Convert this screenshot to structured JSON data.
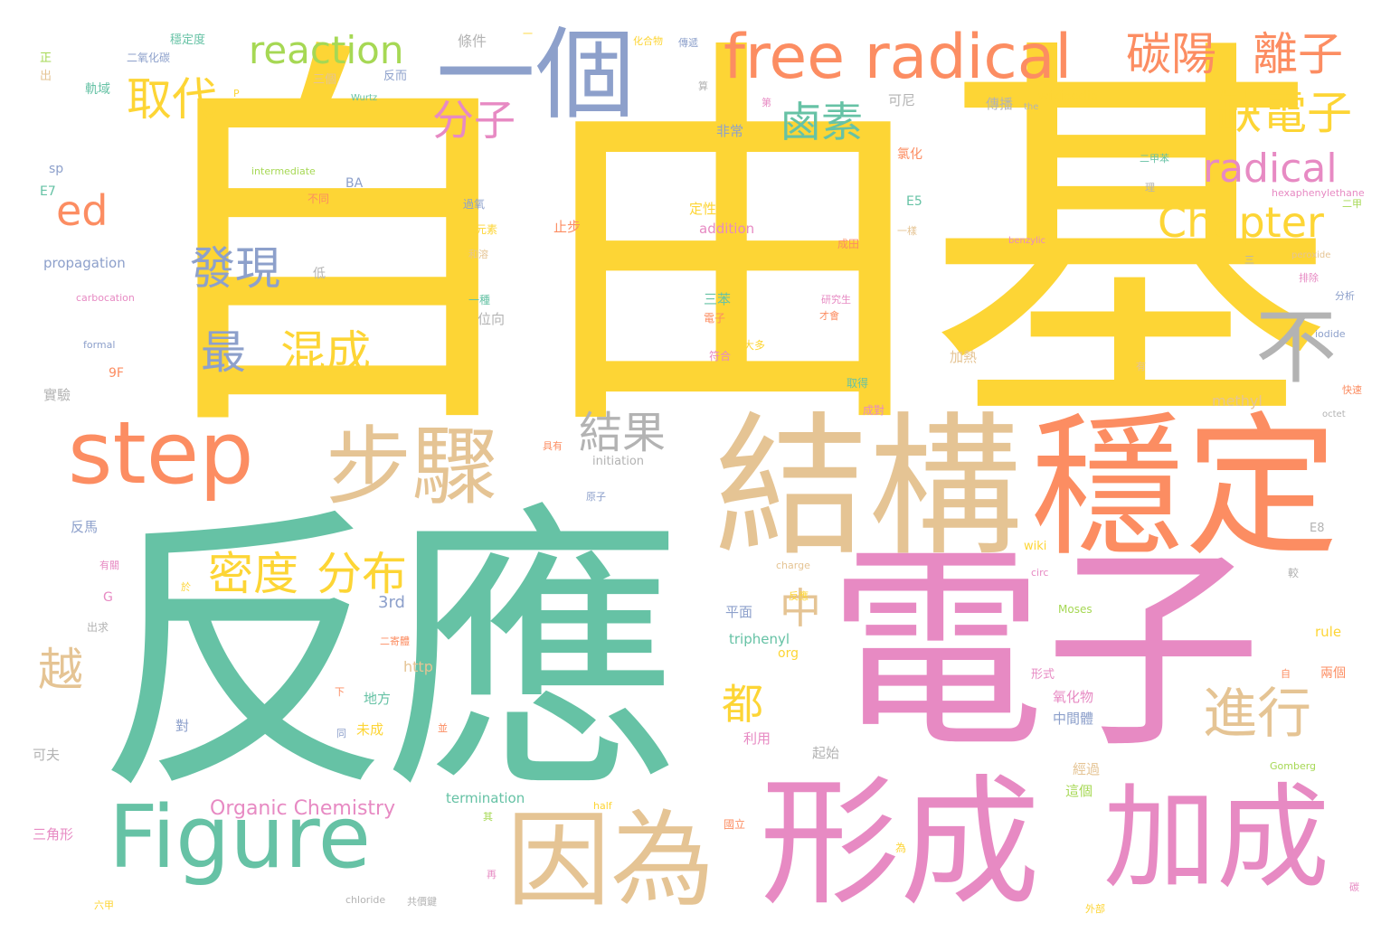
{
  "palette": {
    "yellow": "#fdd535",
    "green": "#66c2a5",
    "pink": "#e78ac3",
    "orange": "#fc8d62",
    "tan": "#e5c494",
    "blue": "#8da0cb",
    "lime": "#a6d854",
    "gray": "#b3b3b3"
  },
  "words": [
    {
      "text": "自由基",
      "color": "yellow"
    },
    {
      "text": "反應",
      "color": "green"
    },
    {
      "text": "電子",
      "color": "pink"
    },
    {
      "text": "結構",
      "color": "tan"
    },
    {
      "text": "穩定",
      "color": "orange"
    },
    {
      "text": "形成",
      "color": "pink"
    },
    {
      "text": "加成",
      "color": "pink"
    },
    {
      "text": "因為",
      "color": "tan"
    },
    {
      "text": "Figure",
      "color": "green"
    },
    {
      "text": "step",
      "color": "orange"
    },
    {
      "text": "步驟",
      "color": "tan"
    },
    {
      "text": "一個",
      "color": "blue"
    },
    {
      "text": "free radical",
      "color": "orange"
    },
    {
      "text": "碳陽",
      "color": "orange"
    },
    {
      "text": "離子",
      "color": "orange"
    },
    {
      "text": "reaction",
      "color": "lime"
    },
    {
      "text": "取代",
      "color": "yellow"
    },
    {
      "text": "分子",
      "color": "pink"
    },
    {
      "text": "鹵素",
      "color": "green"
    },
    {
      "text": "缺電子",
      "color": "yellow"
    },
    {
      "text": "radical",
      "color": "pink"
    },
    {
      "text": "Chapter",
      "color": "yellow"
    },
    {
      "text": "ed",
      "color": "orange"
    },
    {
      "text": "發現",
      "color": "blue"
    },
    {
      "text": "最",
      "color": "blue"
    },
    {
      "text": "混成",
      "color": "yellow"
    },
    {
      "text": "不",
      "color": "gray"
    },
    {
      "text": "結果",
      "color": "gray"
    },
    {
      "text": "密度",
      "color": "yellow"
    },
    {
      "text": "分布",
      "color": "yellow"
    },
    {
      "text": "中",
      "color": "tan"
    },
    {
      "text": "進行",
      "color": "tan"
    },
    {
      "text": "都",
      "color": "yellow"
    },
    {
      "text": "越",
      "color": "tan"
    },
    {
      "text": "Organic Chemistry",
      "color": "pink"
    },
    {
      "text": "3rd",
      "color": "blue"
    },
    {
      "text": "propagation",
      "color": "blue"
    },
    {
      "text": "termination",
      "color": "green"
    },
    {
      "text": "triphenyl",
      "color": "green"
    },
    {
      "text": "addition",
      "color": "pink"
    },
    {
      "text": "initiation",
      "color": "gray"
    },
    {
      "text": "intermediate",
      "color": "lime"
    },
    {
      "text": "carbocation",
      "color": "pink"
    },
    {
      "text": "formal",
      "color": "blue"
    },
    {
      "text": "wikipedia",
      "color": "yellow"
    },
    {
      "text": "hexaphenylethane",
      "color": "pink"
    },
    {
      "text": "benzylic",
      "color": "pink"
    },
    {
      "text": "peroxide",
      "color": "tan"
    },
    {
      "text": "iodide",
      "color": "blue"
    },
    {
      "text": "octet",
      "color": "gray"
    },
    {
      "text": "methyl",
      "color": "tan"
    },
    {
      "text": "charge",
      "color": "tan"
    },
    {
      "text": "circ",
      "color": "pink"
    },
    {
      "text": "Moses",
      "color": "lime"
    },
    {
      "text": "Gomberg",
      "color": "lime"
    },
    {
      "text": "rule",
      "color": "yellow"
    },
    {
      "text": "http",
      "color": "tan"
    },
    {
      "text": "org",
      "color": "yellow"
    },
    {
      "text": "half",
      "color": "yellow"
    },
    {
      "text": "chloride",
      "color": "gray"
    },
    {
      "text": "wiki",
      "color": "yellow"
    },
    {
      "text": "Wurtz",
      "color": "green"
    },
    {
      "text": "BA",
      "color": "blue"
    },
    {
      "text": "sp",
      "color": "blue"
    },
    {
      "text": "E7",
      "color": "green"
    },
    {
      "text": "E5",
      "color": "green"
    },
    {
      "text": "E8",
      "color": "gray"
    },
    {
      "text": "9F",
      "color": "orange"
    },
    {
      "text": "G",
      "color": "pink"
    },
    {
      "text": "P",
      "color": "yellow"
    },
    {
      "text": "the",
      "color": "gray"
    },
    {
      "text": "條件",
      "color": "gray"
    },
    {
      "text": "正",
      "color": "lime"
    },
    {
      "text": "出",
      "color": "tan"
    },
    {
      "text": "二氧化碳",
      "color": "blue"
    },
    {
      "text": "穩定度",
      "color": "green"
    },
    {
      "text": "軌域",
      "color": "green"
    },
    {
      "text": "三個",
      "color": "tan"
    },
    {
      "text": "反而",
      "color": "blue"
    },
    {
      "text": "化合物",
      "color": "yellow"
    },
    {
      "text": "傳遞",
      "color": "blue"
    },
    {
      "text": "可尼",
      "color": "gray"
    },
    {
      "text": "傳播",
      "color": "gray"
    },
    {
      "text": "非常",
      "color": "blue"
    },
    {
      "text": "氯化",
      "color": "orange"
    },
    {
      "text": "定性",
      "color": "yellow"
    },
    {
      "text": "止步",
      "color": "orange"
    },
    {
      "text": "元素",
      "color": "yellow"
    },
    {
      "text": "和溶",
      "color": "tan"
    },
    {
      "text": "低",
      "color": "gray"
    },
    {
      "text": "不同",
      "color": "orange"
    },
    {
      "text": "過氧",
      "color": "blue"
    },
    {
      "text": "位向",
      "color": "gray"
    },
    {
      "text": "一種",
      "color": "green"
    },
    {
      "text": "三苯",
      "color": "green"
    },
    {
      "text": "電子",
      "color": "orange"
    },
    {
      "text": "符合",
      "color": "pink"
    },
    {
      "text": "大多",
      "color": "yellow"
    },
    {
      "text": "取得",
      "color": "green"
    },
    {
      "text": "成對",
      "color": "pink"
    },
    {
      "text": "加熱",
      "color": "tan"
    },
    {
      "text": "實驗",
      "color": "gray"
    },
    {
      "text": "反馬",
      "color": "blue"
    },
    {
      "text": "平面",
      "color": "blue"
    },
    {
      "text": "地方",
      "color": "green"
    },
    {
      "text": "對",
      "color": "blue"
    },
    {
      "text": "未成",
      "color": "yellow"
    },
    {
      "text": "利用",
      "color": "pink"
    },
    {
      "text": "起始",
      "color": "gray"
    },
    {
      "text": "中間體",
      "color": "blue"
    },
    {
      "text": "氧化物",
      "color": "pink"
    },
    {
      "text": "經過",
      "color": "tan"
    },
    {
      "text": "這個",
      "color": "lime"
    },
    {
      "text": "形式",
      "color": "pink"
    },
    {
      "text": "兩個",
      "color": "orange"
    },
    {
      "text": "可夫",
      "color": "gray"
    },
    {
      "text": "三角形",
      "color": "pink"
    },
    {
      "text": "出求",
      "color": "gray"
    },
    {
      "text": "二寄體",
      "color": "orange"
    },
    {
      "text": "國立",
      "color": "orange"
    },
    {
      "text": "共價鍵",
      "color": "gray"
    },
    {
      "text": "外部",
      "color": "yellow"
    },
    {
      "text": "六甲",
      "color": "yellow"
    },
    {
      "text": "快速",
      "color": "orange"
    },
    {
      "text": "分析",
      "color": "blue"
    },
    {
      "text": "排除",
      "color": "pink"
    },
    {
      "text": "二甲",
      "color": "lime"
    },
    {
      "text": "較",
      "color": "gray"
    },
    {
      "text": "有關",
      "color": "pink"
    },
    {
      "text": "於",
      "color": "yellow"
    },
    {
      "text": "研究生",
      "color": "pink"
    },
    {
      "text": "才會",
      "color": "orange"
    },
    {
      "text": "成田",
      "color": "orange"
    },
    {
      "text": "一樣",
      "color": "tan"
    },
    {
      "text": "算",
      "color": "gray"
    },
    {
      "text": "第",
      "color": "pink"
    },
    {
      "text": "具有",
      "color": "orange"
    },
    {
      "text": "原子",
      "color": "blue"
    },
    {
      "text": "二甲苯",
      "color": "green"
    },
    {
      "text": "反應",
      "color": "yellow"
    },
    {
      "text": "碳",
      "color": "pink"
    },
    {
      "text": "理",
      "color": "gray"
    },
    {
      "text": "同",
      "color": "blue"
    },
    {
      "text": "下",
      "color": "orange"
    },
    {
      "text": "為",
      "color": "yellow"
    },
    {
      "text": "再",
      "color": "pink"
    },
    {
      "text": "自",
      "color": "orange"
    },
    {
      "text": "一",
      "color": "yellow"
    },
    {
      "text": "三",
      "color": "gray"
    },
    {
      "text": "並",
      "color": "orange"
    },
    {
      "text": "其",
      "color": "lime"
    },
    {
      "text": "有",
      "color": "tan"
    }
  ]
}
